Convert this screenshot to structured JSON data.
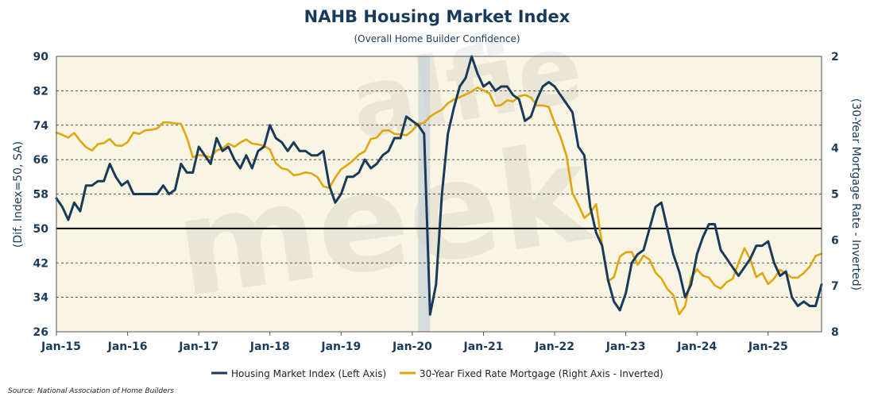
{
  "chart_data": {
    "type": "line",
    "title": "NAHB Housing Market Index",
    "subtitle": "(Overall Home Builder Confidence)",
    "ylabel_left": "(Dif. Index=50, SA)",
    "ylabel_right": "(30-Year Mortgage Rate - Inverted)",
    "x_tick_labels": [
      "Jan-15",
      "Jan-16",
      "Jan-17",
      "Jan-18",
      "Jan-19",
      "Jan-20",
      "Jan-21",
      "Jan-22",
      "Jan-23",
      "Jan-24",
      "Jan-25"
    ],
    "y_left_ticks": [
      26,
      34,
      42,
      50,
      58,
      66,
      74,
      82,
      90
    ],
    "y_right_ticks": [
      2,
      4,
      5,
      6,
      7,
      8
    ],
    "ylim_left": [
      26,
      90
    ],
    "ylim_right_inverted": [
      2,
      8
    ],
    "x_start": "2015-01",
    "x_end": "2025-10",
    "reference_line": 50,
    "grid": "horizontal dashed",
    "shaded_period": {
      "start": "2020-02",
      "end": "2020-04"
    },
    "watermark": "alfie meek",
    "colors": {
      "background": "#f8f5e3",
      "hmi": "#1a3a5c",
      "mortgage": "#e2a50f",
      "recession": "#c9d3d8"
    },
    "series": [
      {
        "name": "Housing Market Index (Left Axis)",
        "axis": "left",
        "values": [
          57,
          55,
          52,
          56,
          54,
          60,
          60,
          61,
          61,
          65,
          62,
          60,
          61,
          58,
          58,
          58,
          58,
          58,
          60,
          58,
          59,
          65,
          63,
          63,
          69,
          67,
          65,
          71,
          68,
          69,
          66,
          64,
          67,
          64,
          68,
          69,
          74,
          71,
          70,
          68,
          70,
          68,
          68,
          67,
          67,
          68,
          60,
          56,
          58,
          62,
          62,
          63,
          66,
          64,
          65,
          67,
          68,
          71,
          71,
          76,
          75,
          74,
          72,
          30,
          37,
          58,
          72,
          78,
          83,
          85,
          90,
          86,
          83,
          84,
          82,
          83,
          83,
          81,
          80,
          75,
          76,
          80,
          83,
          84,
          83,
          81,
          79,
          77,
          69,
          67,
          55,
          49,
          46,
          38,
          33,
          31,
          35,
          42,
          44,
          45,
          50,
          55,
          56,
          50,
          44,
          40,
          34,
          37,
          44,
          48,
          51,
          51,
          45,
          43,
          41,
          39,
          41,
          43,
          46,
          46,
          47,
          42,
          39,
          40,
          34,
          32,
          33,
          32,
          32,
          37
        ]
      },
      {
        "name": "30-Year Fixed Rate Mortgage (Right Axis - Inverted)",
        "axis": "right",
        "values": [
          3.66,
          3.71,
          3.77,
          3.67,
          3.84,
          3.98,
          4.05,
          3.91,
          3.89,
          3.8,
          3.94,
          3.95,
          3.87,
          3.66,
          3.69,
          3.61,
          3.6,
          3.57,
          3.44,
          3.44,
          3.46,
          3.47,
          3.77,
          4.2,
          4.15,
          4.17,
          4.2,
          4.05,
          4.01,
          3.9,
          3.97,
          3.88,
          3.81,
          3.9,
          3.92,
          3.95,
          4.03,
          4.33,
          4.44,
          4.47,
          4.59,
          4.57,
          4.53,
          4.55,
          4.63,
          4.83,
          4.87,
          4.64,
          4.46,
          4.37,
          4.27,
          4.14,
          4.07,
          3.8,
          3.77,
          3.62,
          3.61,
          3.69,
          3.7,
          3.72,
          3.62,
          3.47,
          3.45,
          3.31,
          3.23,
          3.16,
          3.02,
          2.94,
          2.89,
          2.83,
          2.77,
          2.68,
          2.74,
          2.81,
          3.08,
          3.06,
          2.96,
          2.98,
          2.87,
          2.84,
          2.9,
          3.07,
          3.07,
          3.1,
          3.45,
          3.76,
          4.17,
          4.98,
          5.23,
          5.52,
          5.41,
          5.22,
          6.11,
          6.9,
          6.81,
          6.36,
          6.27,
          6.26,
          6.54,
          6.34,
          6.43,
          6.71,
          6.84,
          7.07,
          7.2,
          7.62,
          7.44,
          6.82,
          6.64,
          6.78,
          6.82,
          6.99,
          7.06,
          6.92,
          6.85,
          6.5,
          6.18,
          6.43,
          6.81,
          6.72,
          6.96,
          6.84,
          6.65,
          6.73,
          6.82,
          6.82,
          6.72,
          6.58,
          6.35,
          6.3
        ]
      }
    ]
  },
  "legend": [
    {
      "label": "Housing Market Index (Left Axis)",
      "color": "#1a3a5c"
    },
    {
      "label": "30-Year Fixed Rate Mortgage (Right Axis - Inverted)",
      "color": "#e2a50f"
    }
  ],
  "source": "Source: National Association of Home Builders"
}
